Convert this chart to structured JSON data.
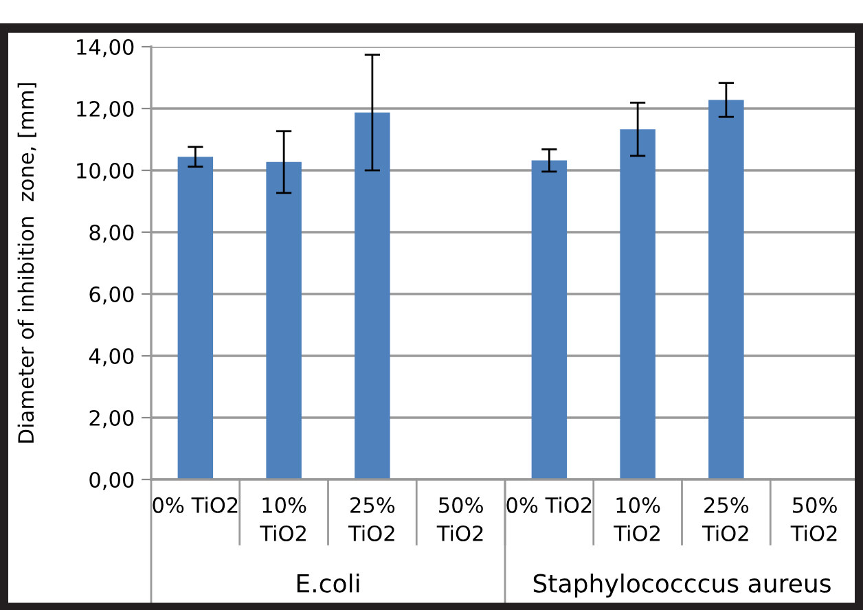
{
  "chart_data": {
    "type": "bar",
    "ylabel": "Diameter of inhibition  zone, [mm]",
    "categories": [
      "0% TiO2",
      "10% TiO2",
      "25% TiO2",
      "50% TiO2",
      "0% TiO2",
      "10% TiO2",
      "25% TiO2",
      "50% TiO2"
    ],
    "values": [
      10.44,
      10.27,
      11.87,
      null,
      10.32,
      11.33,
      12.28,
      null
    ],
    "errors": [
      0.32,
      1.0,
      1.87,
      null,
      0.36,
      0.86,
      0.55,
      null
    ],
    "color": "#4f81bd",
    "ylim": [
      0,
      14
    ],
    "yticks": [
      {
        "value": 0,
        "label": "0,00"
      },
      {
        "value": 2,
        "label": "2,00"
      },
      {
        "value": 4,
        "label": "4,00"
      },
      {
        "value": 6,
        "label": "6,00"
      },
      {
        "value": 8,
        "label": "8,00"
      },
      {
        "value": 10,
        "label": "10,00"
      },
      {
        "value": 12,
        "label": "12,00"
      },
      {
        "value": 14,
        "label": "14,00"
      }
    ],
    "grid": "y",
    "annotations": [
      "E.coli",
      "Staphylococccus aureus"
    ]
  }
}
